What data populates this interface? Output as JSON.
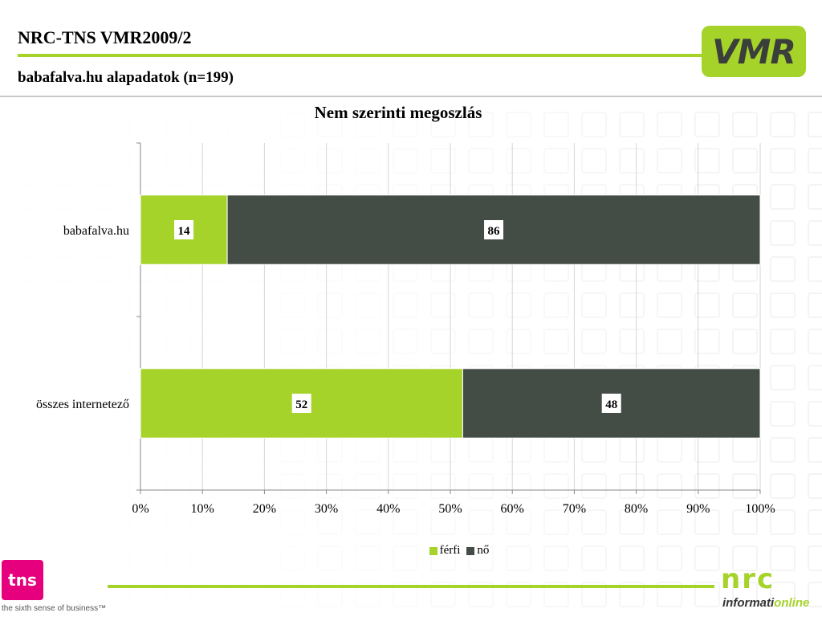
{
  "header": {
    "title": "NRC-TNS VMR2009/2",
    "subtitle": "babafalva.hu alapadatok (n=199)"
  },
  "logos": {
    "vmr": "VMR",
    "tns": "tns",
    "tns_tagline": "the sixth sense of business™",
    "nrc": "nrc",
    "nrc_sub_a": "informati",
    "nrc_sub_b": "online"
  },
  "colors": {
    "accent_green": "#a6d32a",
    "dark_gray": "#444c46",
    "tns_pink": "#e6007e"
  },
  "chart_data": {
    "type": "bar",
    "orientation": "horizontal",
    "stacked": "percent",
    "title": "Nem szerinti megoszlás",
    "categories": [
      "babafalva.hu",
      "összes internetező"
    ],
    "series": [
      {
        "name": "férfi",
        "values": [
          14,
          52
        ],
        "color": "#a6d32a"
      },
      {
        "name": "nő",
        "values": [
          86,
          48
        ],
        "color": "#444c46"
      }
    ],
    "xlim": [
      0,
      100
    ],
    "xticks": [
      "0%",
      "10%",
      "20%",
      "30%",
      "40%",
      "50%",
      "60%",
      "70%",
      "80%",
      "90%",
      "100%"
    ],
    "grid": true,
    "legend": "bottom"
  }
}
